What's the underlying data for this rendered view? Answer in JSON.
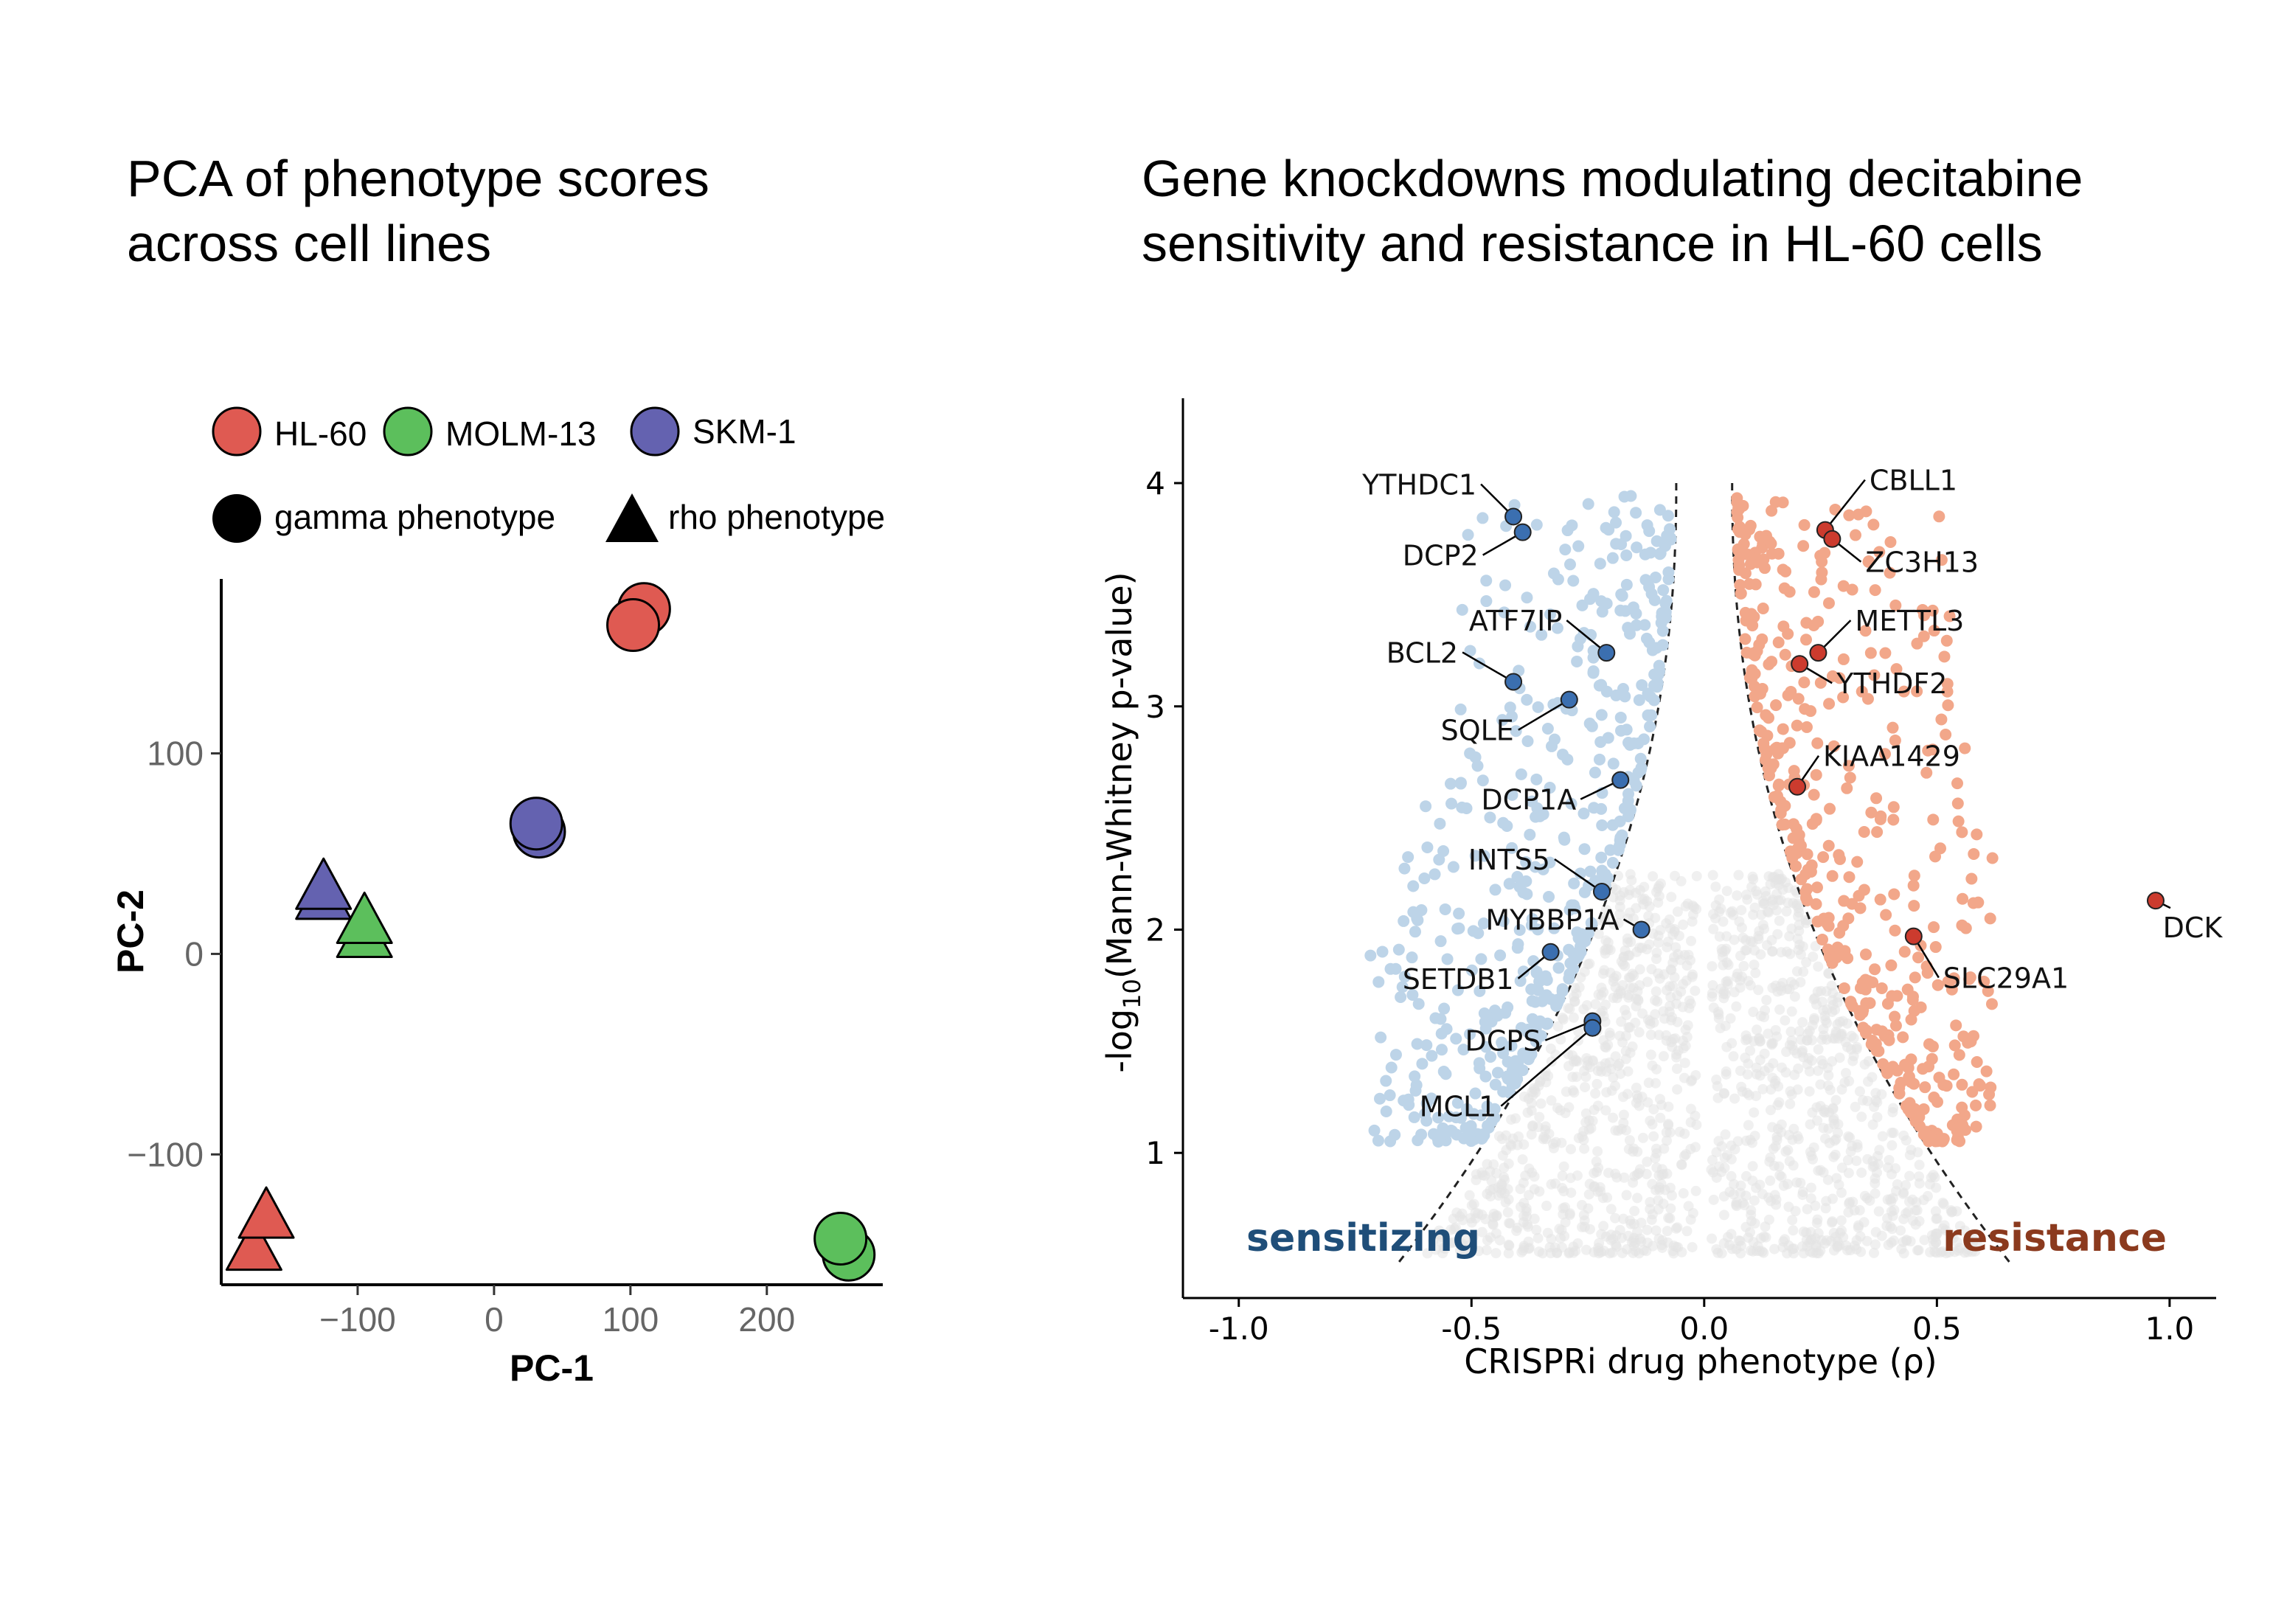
{
  "titles": {
    "pca": [
      "PCA of phenotype scores",
      "across cell lines"
    ],
    "volcano": [
      "Gene knockdowns modulating decitabine",
      "sensitivity and resistance in HL-60 cells"
    ]
  },
  "chart_data": [
    {
      "type": "scatter",
      "id": "pca",
      "xlabel": "PC-1",
      "ylabel": "PC-2",
      "xlim": [
        -200,
        285
      ],
      "ylim": [
        -165,
        187
      ],
      "xticks": [
        -100,
        0,
        100,
        200
      ],
      "yticks": [
        -100,
        0,
        100
      ],
      "grid": false,
      "legend": {
        "placement": "top",
        "colors": [
          {
            "label": "HL-60",
            "color": "#df5a52"
          },
          {
            "label": "MOLM-13",
            "color": "#5cbf5c"
          },
          {
            "label": "SKM-1",
            "color": "#6462b0"
          }
        ],
        "shapes": [
          {
            "label": "gamma phenotype",
            "shape": "circle"
          },
          {
            "label": "rho phenotype",
            "shape": "triangle"
          }
        ]
      },
      "points": [
        {
          "cell_line": "HL-60",
          "phenotype": "gamma",
          "x": 110,
          "y": 172
        },
        {
          "cell_line": "HL-60",
          "phenotype": "gamma",
          "x": 102,
          "y": 164
        },
        {
          "cell_line": "SKM-1",
          "phenotype": "gamma",
          "x": 33,
          "y": 61
        },
        {
          "cell_line": "SKM-1",
          "phenotype": "gamma",
          "x": 31,
          "y": 65
        },
        {
          "cell_line": "MOLM-13",
          "phenotype": "gamma",
          "x": 260,
          "y": -150
        },
        {
          "cell_line": "MOLM-13",
          "phenotype": "gamma",
          "x": 254,
          "y": -142
        },
        {
          "cell_line": "SKM-1",
          "phenotype": "rho",
          "x": -125,
          "y": 27
        },
        {
          "cell_line": "SKM-1",
          "phenotype": "rho",
          "x": -125,
          "y": 32
        },
        {
          "cell_line": "MOLM-13",
          "phenotype": "rho",
          "x": -95,
          "y": 8
        },
        {
          "cell_line": "MOLM-13",
          "phenotype": "rho",
          "x": -95,
          "y": 15
        },
        {
          "cell_line": "HL-60",
          "phenotype": "rho",
          "x": -176,
          "y": -148
        },
        {
          "cell_line": "HL-60",
          "phenotype": "rho",
          "x": -167,
          "y": -132
        }
      ]
    },
    {
      "type": "scatter",
      "id": "volcano",
      "xlabel": "CRISPRi drug phenotype (ρ)",
      "ylabel_pre": "-log",
      "ylabel_sub": "10",
      "ylabel_post": "(Mann-Whitney p-value)",
      "xlim": [
        -1.12,
        1.1
      ],
      "ylim": [
        0.35,
        4.38
      ],
      "xticks": [
        "-1.0",
        "-0.5",
        "0.0",
        "0.5",
        "1.0"
      ],
      "yticks": [
        "1",
        "2",
        "3",
        "4"
      ],
      "grid": false,
      "annotations": {
        "sensitizing": {
          "text": "sensitizing",
          "color": "#1f4e79"
        },
        "resistance": {
          "text": "resistance",
          "color": "#8b3a1e"
        }
      },
      "colors": {
        "sensitizing_points": "#bdd4e8",
        "resistance_points": "#f2a78a",
        "background_points": "#e3e3e3",
        "sensitizing_hits": "#3b6fb0",
        "resistance_hits": "#cc3b2e"
      },
      "threshold_curve": "dashed",
      "labeled_genes": [
        {
          "gene": "YTHDC1",
          "x": -0.41,
          "y": 3.85,
          "group": "sensitizing"
        },
        {
          "gene": "DCP2",
          "x": -0.39,
          "y": 3.78,
          "group": "sensitizing"
        },
        {
          "gene": "ATF7IP",
          "x": -0.21,
          "y": 3.24,
          "group": "sensitizing"
        },
        {
          "gene": "BCL2",
          "x": -0.41,
          "y": 3.11,
          "group": "sensitizing"
        },
        {
          "gene": "SQLE",
          "x": -0.29,
          "y": 3.03,
          "group": "sensitizing"
        },
        {
          "gene": "DCP1A",
          "x": -0.18,
          "y": 2.67,
          "group": "sensitizing"
        },
        {
          "gene": "INTS5",
          "x": -0.22,
          "y": 2.17,
          "group": "sensitizing"
        },
        {
          "gene": "MYBBP1A",
          "x": -0.135,
          "y": 2.0,
          "group": "sensitizing"
        },
        {
          "gene": "SETDB1",
          "x": -0.33,
          "y": 1.9,
          "group": "sensitizing"
        },
        {
          "gene": "DCPS",
          "x": -0.24,
          "y": 1.59,
          "group": "sensitizing"
        },
        {
          "gene": "MCL1",
          "x": -0.24,
          "y": 1.56,
          "group": "sensitizing"
        },
        {
          "gene": "CBLL1",
          "x": 0.26,
          "y": 3.79,
          "group": "resistance"
        },
        {
          "gene": "ZC3H13",
          "x": 0.275,
          "y": 3.75,
          "group": "resistance"
        },
        {
          "gene": "METTL3",
          "x": 0.245,
          "y": 3.24,
          "group": "resistance"
        },
        {
          "gene": "YTHDF2",
          "x": 0.205,
          "y": 3.19,
          "group": "resistance"
        },
        {
          "gene": "KIAA1429",
          "x": 0.2,
          "y": 2.64,
          "group": "resistance"
        },
        {
          "gene": "SLC29A1",
          "x": 0.45,
          "y": 1.97,
          "group": "resistance"
        },
        {
          "gene": "DCK",
          "x": 0.97,
          "y": 2.13,
          "group": "resistance"
        }
      ]
    }
  ]
}
